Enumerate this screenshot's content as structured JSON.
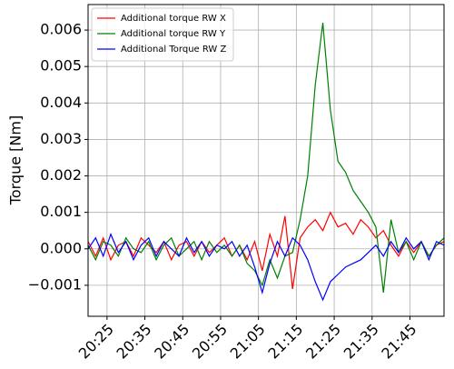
{
  "chart_data": {
    "type": "line",
    "ylabel": "Torque [Nm]",
    "x": [
      "20:20",
      "20:22",
      "20:24",
      "20:26",
      "20:28",
      "20:30",
      "20:32",
      "20:34",
      "20:36",
      "20:38",
      "20:40",
      "20:42",
      "20:44",
      "20:46",
      "20:48",
      "20:50",
      "20:52",
      "20:54",
      "20:56",
      "20:58",
      "21:00",
      "21:02",
      "21:04",
      "21:06",
      "21:08",
      "21:10",
      "21:12",
      "21:14",
      "21:16",
      "21:18",
      "21:20",
      "21:22",
      "21:24",
      "21:26",
      "21:28",
      "21:30",
      "21:32",
      "21:34",
      "21:36",
      "21:38",
      "21:40",
      "21:42",
      "21:44",
      "21:46",
      "21:48",
      "21:50",
      "21:52",
      "21:54"
    ],
    "series": [
      {
        "name": "Additional torque RW X",
        "color": "#ff0000",
        "values": [
          0.0002,
          -0.0002,
          0.0003,
          -0.0003,
          0.0001,
          0.0002,
          -0.0002,
          0.0003,
          0.0001,
          -0.0001,
          0.0002,
          -0.0003,
          0.0001,
          0.0002,
          -0.0002,
          0.0002,
          -0.0001,
          0.0001,
          0.0003,
          -0.0002,
          0.0001,
          -0.0003,
          0.0002,
          -0.0006,
          0.0004,
          -0.0002,
          0.0009,
          -0.0011,
          0.0003,
          0.0006,
          0.0008,
          0.0005,
          0.001,
          0.0006,
          0.0007,
          0.0004,
          0.0008,
          0.0006,
          0.0003,
          0.0005,
          0.0001,
          -0.0002,
          0.0002,
          -0.0001,
          0.0002,
          -0.0002,
          0.0001,
          0.0002
        ]
      },
      {
        "name": "Additional torque RW Y",
        "color": "#008000",
        "values": [
          0.0001,
          -0.0003,
          0.0002,
          0.0001,
          -0.0002,
          0.0003,
          0.0,
          -0.0001,
          0.0002,
          -0.0003,
          0.0001,
          0.0003,
          -0.0002,
          0.0,
          0.0002,
          -0.0003,
          0.0002,
          -0.0001,
          0.0001,
          -0.0002,
          0.0001,
          -0.0004,
          -0.0006,
          -0.001,
          -0.0003,
          -0.0008,
          -0.0002,
          -0.0001,
          0.0008,
          0.002,
          0.0045,
          0.0062,
          0.0038,
          0.0024,
          0.0021,
          0.0016,
          0.0013,
          0.001,
          0.0006,
          -0.0012,
          0.0008,
          -0.0001,
          0.0002,
          -0.0003,
          0.0002,
          -0.0002,
          0.0001,
          0.0003
        ]
      },
      {
        "name": "Additional Torque RW Z",
        "color": "#0000ff",
        "values": [
          0.0,
          0.0003,
          -0.0002,
          0.0004,
          -0.0001,
          0.0002,
          -0.0003,
          0.0001,
          0.0003,
          -0.0002,
          0.0002,
          0.0,
          -0.0002,
          0.0003,
          -0.0001,
          0.0002,
          -0.0002,
          0.0001,
          0.0,
          0.0002,
          -0.0002,
          0.0001,
          -0.0005,
          -0.0012,
          -0.0004,
          0.0002,
          -0.0002,
          0.0003,
          0.0001,
          -0.0003,
          -0.0009,
          -0.0014,
          -0.0009,
          -0.0007,
          -0.0005,
          -0.0004,
          -0.0003,
          -0.0001,
          0.0001,
          -0.0002,
          0.0002,
          -0.0001,
          0.0003,
          0.0,
          0.0002,
          -0.0003,
          0.0002,
          0.0001
        ]
      }
    ],
    "xlim": [
      "20:20",
      "21:54"
    ],
    "xticks": [
      "20:25",
      "20:35",
      "20:45",
      "20:55",
      "21:05",
      "21:15",
      "21:25",
      "21:35",
      "21:45"
    ],
    "ylim": [
      -0.00185,
      0.0067
    ],
    "yticks": [
      {
        "value": -0.001,
        "label": "−0.001"
      },
      {
        "value": 0,
        "label": "0.000"
      },
      {
        "value": 0.001,
        "label": "0.001"
      },
      {
        "value": 0.002,
        "label": "0.002"
      },
      {
        "value": 0.003,
        "label": "0.003"
      },
      {
        "value": 0.004,
        "label": "0.004"
      },
      {
        "value": 0.005,
        "label": "0.005"
      },
      {
        "value": 0.006,
        "label": "0.006"
      }
    ],
    "grid": true,
    "legend": "upper-left"
  }
}
